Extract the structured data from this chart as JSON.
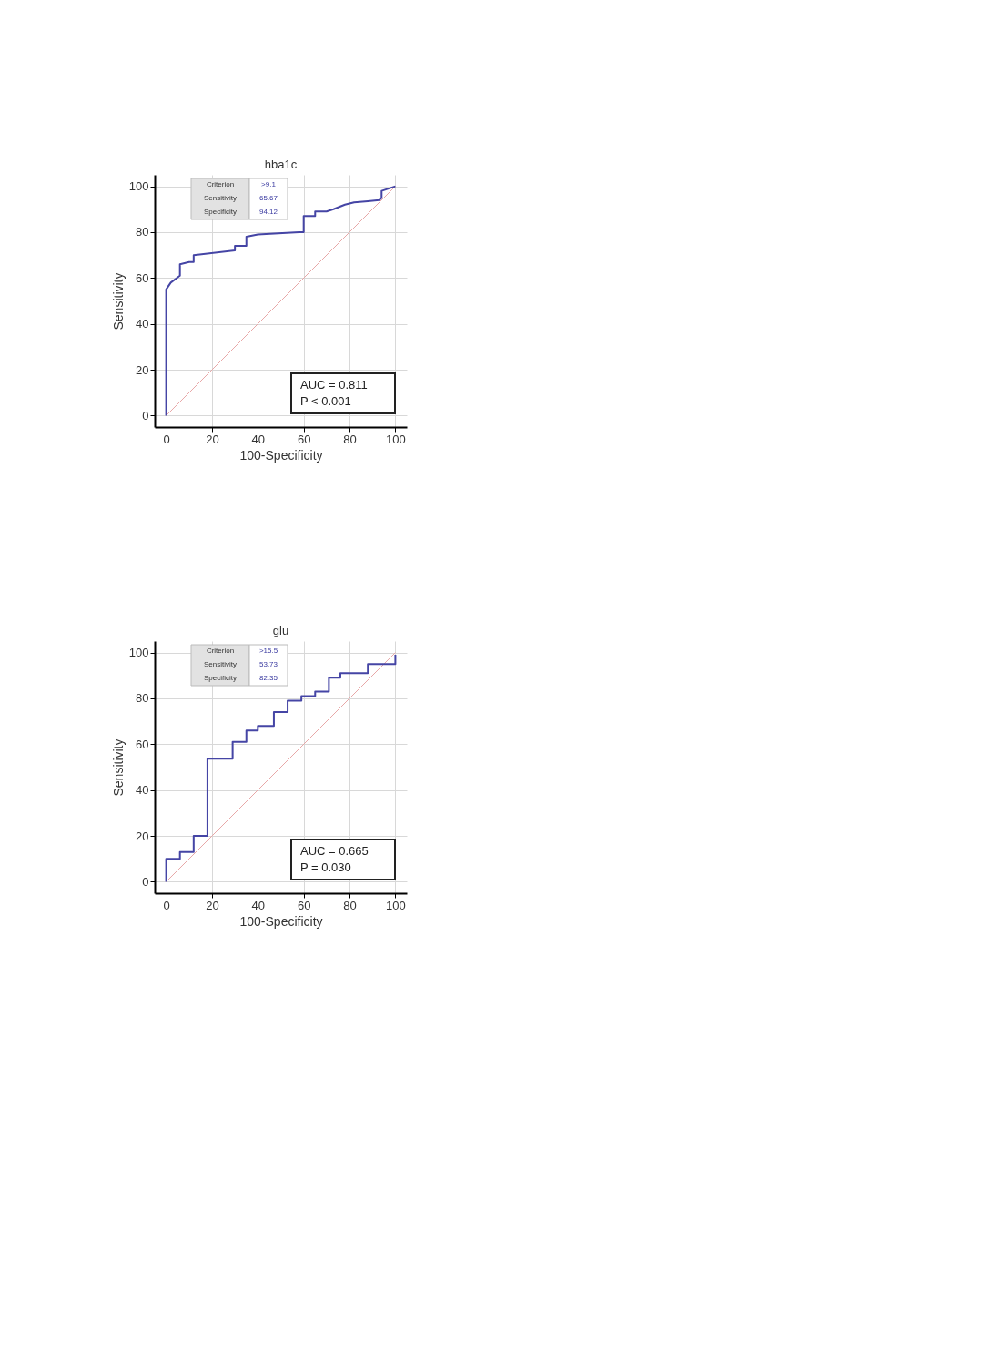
{
  "chart_data": [
    {
      "type": "line",
      "title": "hba1c",
      "xlabel": "100-Specificity",
      "ylabel": "Sensitivity",
      "xlim": [
        -5,
        105
      ],
      "ylim": [
        -5,
        105
      ],
      "xticks": [
        0,
        20,
        40,
        60,
        80,
        100
      ],
      "yticks": [
        0,
        20,
        40,
        60,
        80,
        100
      ],
      "grid": true,
      "series": [
        {
          "color": "#e8a8a8",
          "x": [
            0,
            100
          ],
          "values": [
            0,
            100
          ]
        },
        {
          "color": "#4545a5",
          "x": [
            0,
            0,
            2,
            6,
            6,
            10,
            12,
            12,
            30,
            30,
            35,
            35,
            40,
            58,
            60,
            60,
            65,
            65,
            70,
            73,
            78,
            82,
            88,
            93,
            94,
            94,
            97,
            100
          ],
          "values": [
            0,
            55,
            58,
            61,
            66,
            67,
            67,
            70,
            72,
            74,
            74,
            78,
            79,
            80,
            80,
            87,
            87,
            89,
            89,
            90,
            92,
            93,
            93.5,
            94,
            95,
            98,
            99,
            100
          ]
        }
      ],
      "annotations": [
        "Criterion",
        ">9.1",
        "Sensitivity",
        "65.67",
        "Specificity",
        "94.12",
        "AUC = 0.811",
        "P < 0.001"
      ]
    },
    {
      "type": "line",
      "title": "glu",
      "xlabel": "100-Specificity",
      "ylabel": "Sensitivity",
      "xlim": [
        -5,
        105
      ],
      "ylim": [
        -5,
        105
      ],
      "xticks": [
        0,
        20,
        40,
        60,
        80,
        100
      ],
      "yticks": [
        0,
        20,
        40,
        60,
        80,
        100
      ],
      "grid": true,
      "series": [
        {
          "color": "#e8a8a8",
          "x": [
            0,
            100
          ],
          "values": [
            0,
            100
          ]
        },
        {
          "color": "#4545a5",
          "x": [
            0,
            0,
            6,
            6,
            12,
            12,
            18,
            18,
            29,
            29,
            35,
            35,
            40,
            40,
            47,
            47,
            53,
            53,
            59,
            59,
            65,
            65,
            71,
            71,
            76,
            76,
            88,
            88,
            100,
            100
          ],
          "values": [
            0,
            10,
            10,
            13,
            13,
            20,
            20,
            53.7,
            53.7,
            61,
            61,
            66,
            66,
            68,
            68,
            74,
            74,
            79,
            79,
            81,
            81,
            83,
            83,
            89,
            89,
            91,
            91,
            95,
            95,
            99
          ]
        }
      ],
      "annotations": [
        "Criterion",
        ">15.5",
        "Sensitivity",
        "53.73",
        "Specificity",
        "82.35",
        "AUC = 0.665",
        "P = 0.030"
      ]
    }
  ]
}
